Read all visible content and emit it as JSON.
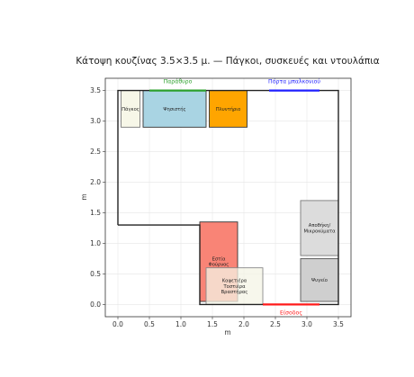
{
  "title": "Κάτοψη κουζίνας 3.5×3.5 μ. — Πάγκοι, συσκευές και ντουλάπια",
  "axes": {
    "xlabel": "m",
    "ylabel": "m",
    "xlim": [
      -0.2,
      3.7
    ],
    "ylim": [
      -0.2,
      3.7
    ],
    "xticks": [
      "0.0",
      "0.5",
      "1.0",
      "1.5",
      "2.0",
      "2.5",
      "3.0",
      "3.5"
    ],
    "yticks": [
      "0.0",
      "0.5",
      "1.0",
      "1.5",
      "2.0",
      "2.5",
      "3.0",
      "3.5"
    ],
    "grid": true
  },
  "walls": {
    "color": "#222222",
    "outline": [
      [
        0,
        1.3
      ],
      [
        0,
        3.5
      ],
      [
        3.5,
        3.5
      ],
      [
        3.5,
        0
      ],
      [
        1.3,
        0
      ],
      [
        1.3,
        1.3
      ],
      [
        0,
        1.3
      ]
    ]
  },
  "openings": [
    {
      "name": "window",
      "label": "Παράθυρο",
      "color": "#2ca02c",
      "x": [
        0.5,
        1.4
      ],
      "y": 3.5
    },
    {
      "name": "balcony-door",
      "label": "Πόρτα μπαλκονιού",
      "color": "#1f1fff",
      "x": [
        2.4,
        3.2
      ],
      "y": 3.5
    },
    {
      "name": "entrance",
      "label": "Είσοδος",
      "color": "#ff1a1a",
      "x": [
        2.3,
        3.2
      ],
      "y": 0
    }
  ],
  "items": [
    {
      "name": "counter",
      "label": "Πάγκος",
      "x": 0.05,
      "y": 2.9,
      "w": 0.3,
      "h": 0.6,
      "fill": "#f7f7e8",
      "edge": "#7a7a7a"
    },
    {
      "name": "hob",
      "label": "Ψησιστής",
      "x": 0.4,
      "y": 2.9,
      "w": 1.0,
      "h": 0.6,
      "fill": "#a9d4e3",
      "edge": "#333333"
    },
    {
      "name": "sink",
      "label": "Πλυντήριο",
      "x": 1.45,
      "y": 2.9,
      "w": 0.6,
      "h": 0.6,
      "fill": "#ffa500",
      "edge": "#333333"
    },
    {
      "name": "island",
      "label": "Εστία\nΦούρνος",
      "x": 1.3,
      "y": 0.05,
      "w": 0.6,
      "h": 1.3,
      "fill": "#f98476",
      "edge": "#333333"
    },
    {
      "name": "coffee-station",
      "label": "Καφετιέρα\nΤοστιέρα\nΒραστήρας",
      "x": 1.4,
      "y": 0.0,
      "w": 0.9,
      "h": 0.6,
      "fill": "#f4f4e6",
      "edge": "#8a8a8a",
      "opacity": 0.75
    },
    {
      "name": "pantry",
      "label": "Αποθήκη/\nΜικροκύματα",
      "x": 2.9,
      "y": 0.8,
      "w": 0.6,
      "h": 0.9,
      "fill": "#dcdcdc",
      "edge": "#7a7a7a"
    },
    {
      "name": "fridge",
      "label": "Ψυγείο",
      "x": 2.9,
      "y": 0.05,
      "w": 0.6,
      "h": 0.7,
      "fill": "#cfcfcf",
      "edge": "#555555"
    }
  ]
}
